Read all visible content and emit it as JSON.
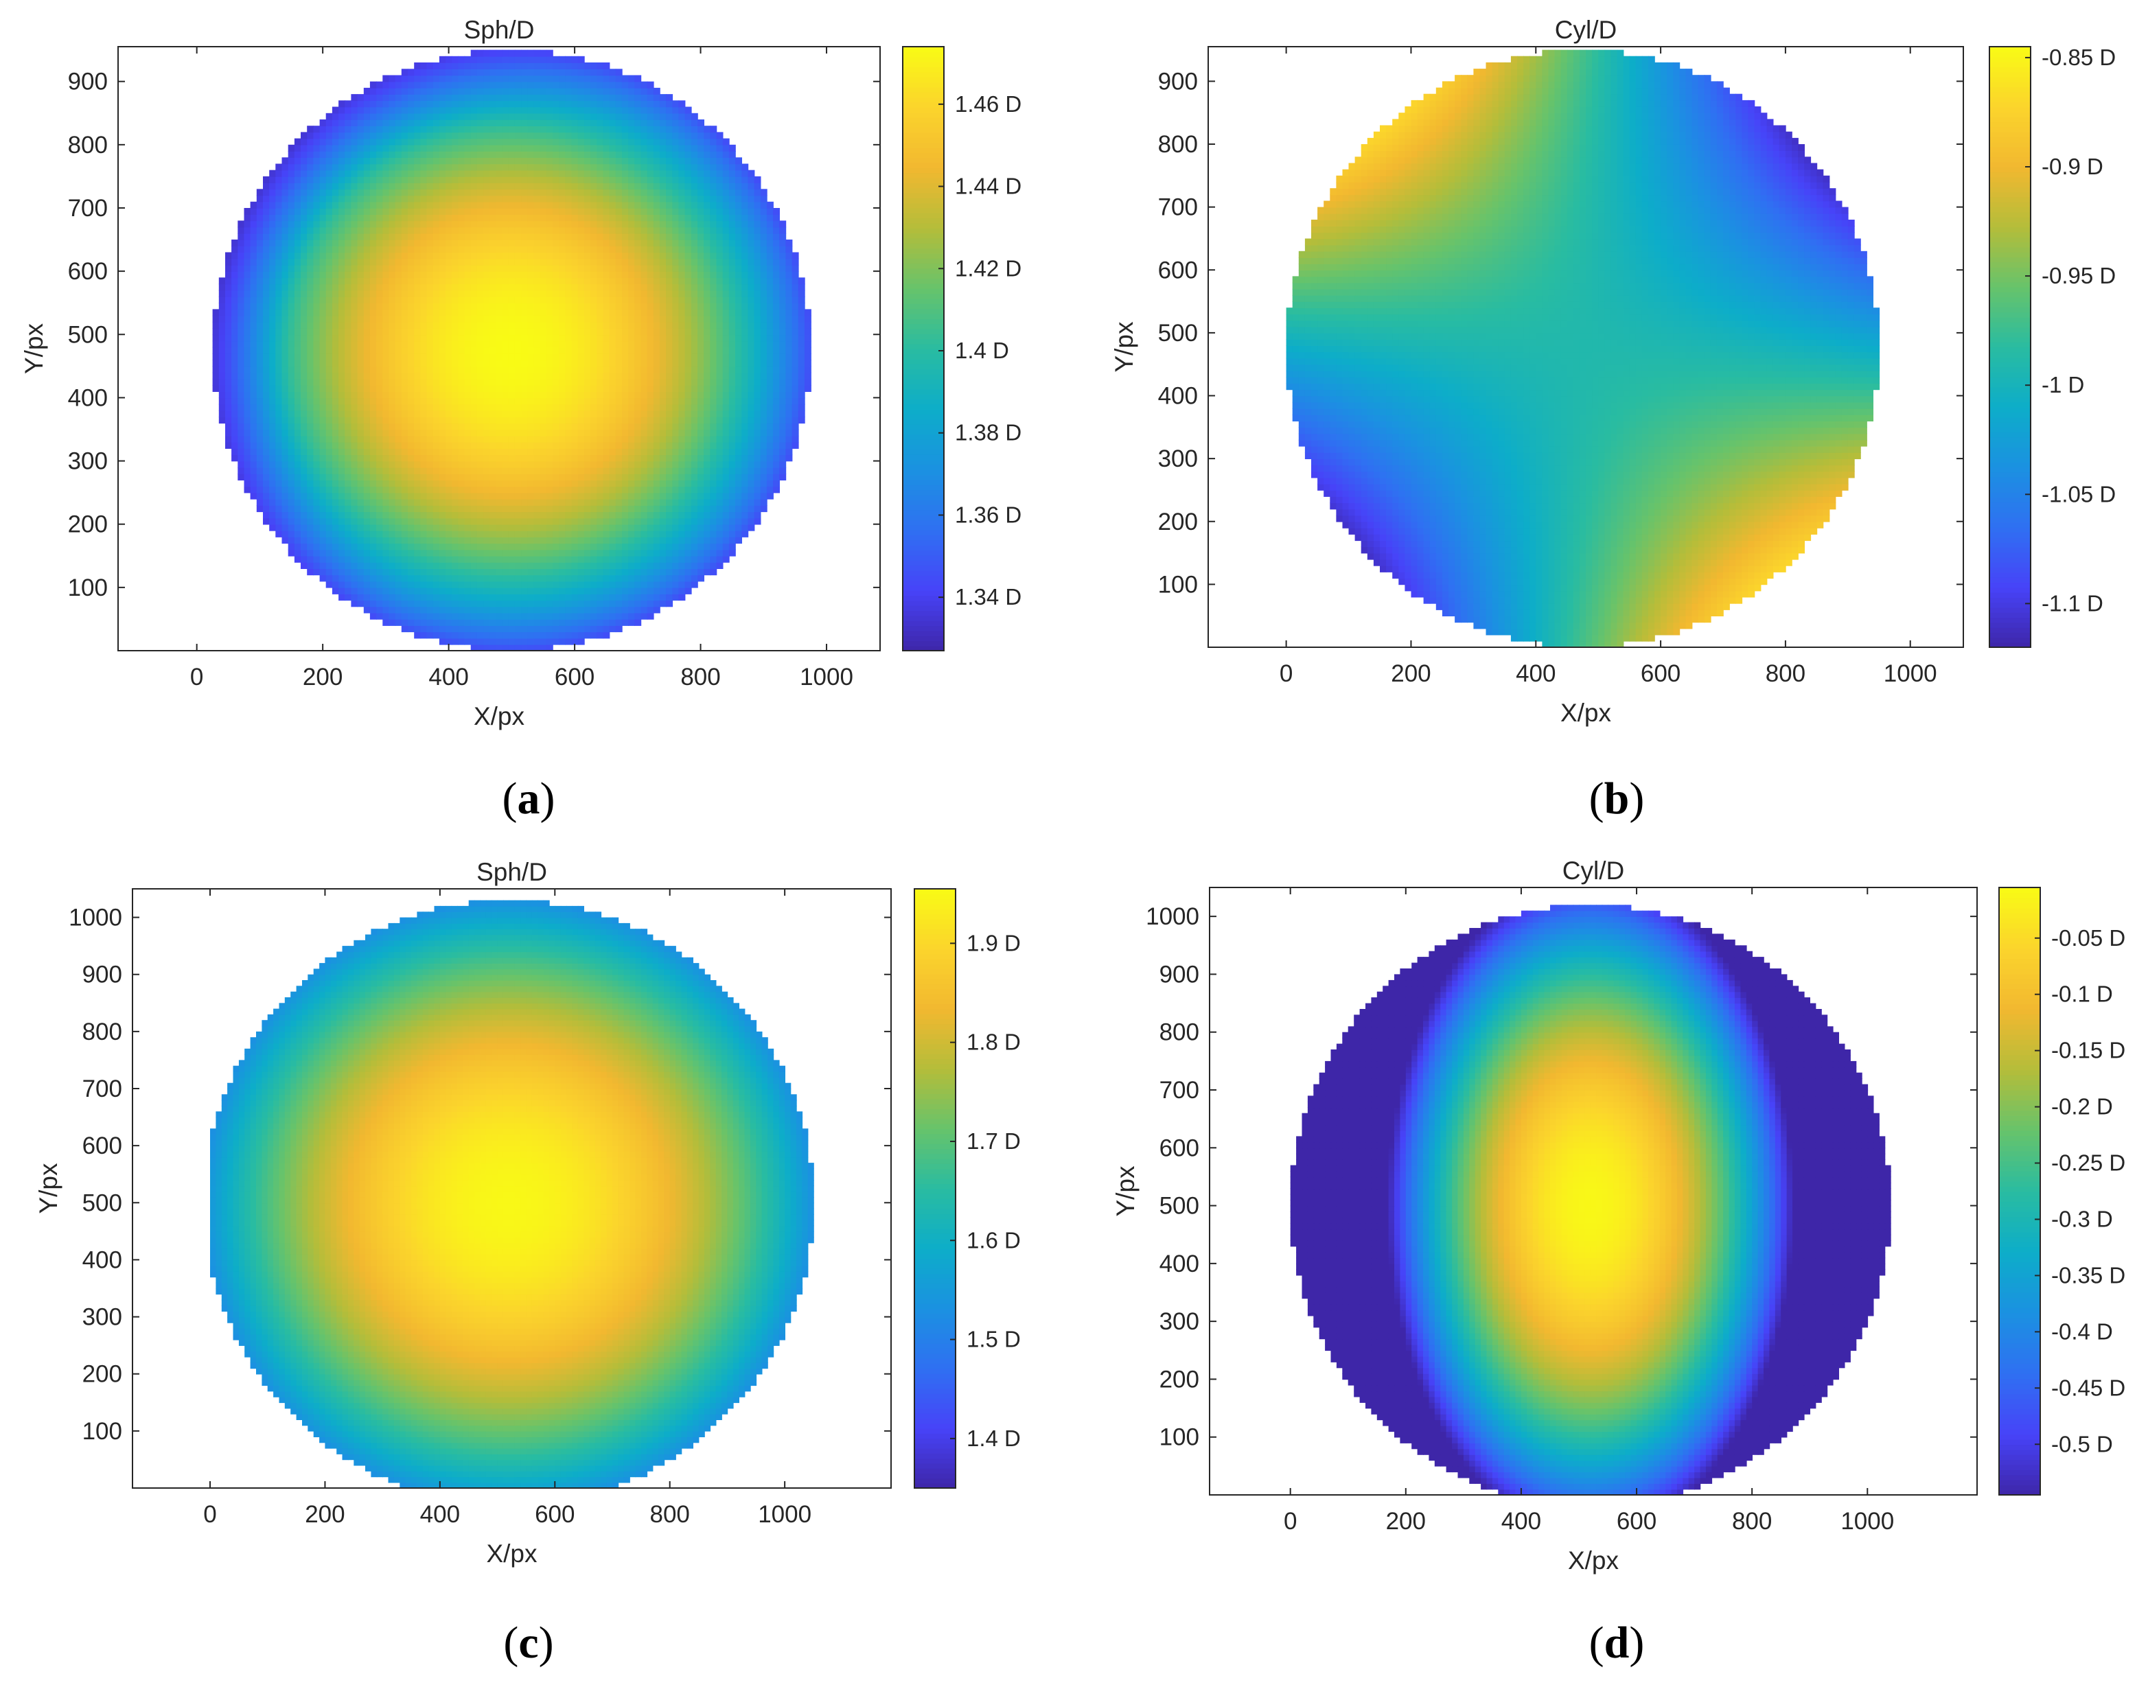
{
  "chart_data": [
    {
      "panel": "a",
      "type": "heatmap",
      "title": "Sph/D",
      "xlabel": "X/px",
      "ylabel": "Y/px",
      "xlim": [
        -125,
        1085
      ],
      "ylim": [
        0,
        955
      ],
      "xticks": [
        0,
        200,
        400,
        600,
        800,
        1000
      ],
      "xtick_labels": [
        "0",
        "200",
        "400",
        "600",
        "800",
        "1000"
      ],
      "yticks": [
        100,
        200,
        300,
        400,
        500,
        600,
        700,
        800,
        900
      ],
      "ytick_labels": [
        "100",
        "200",
        "300",
        "400",
        "500",
        "600",
        "700",
        "800",
        "900"
      ],
      "colorbar": {
        "range": [
          1.327,
          1.474
        ],
        "ticks": [
          1.34,
          1.36,
          1.38,
          1.4,
          1.42,
          1.44,
          1.46
        ],
        "labels": [
          "1.34 D",
          "1.36 D",
          "1.38 D",
          "1.4 D",
          "1.42 D",
          "1.44 D",
          "1.46 D"
        ]
      },
      "field": {
        "shape": "circle",
        "center": [
          500,
          475
        ],
        "radius": 475,
        "pattern": "radial",
        "value_center": 1.474,
        "value_edge": 1.345,
        "edge_offset": [
          -0.9,
          0.4
        ],
        "edge_min": 1.327
      },
      "panel_label": {
        "open": "(",
        "letter": "a",
        "close": ")"
      }
    },
    {
      "panel": "b",
      "type": "heatmap",
      "title": "Cyl/D",
      "xlabel": "X/px",
      "ylabel": "Y/px",
      "xlim": [
        -125,
        1085
      ],
      "ylim": [
        0,
        955
      ],
      "xticks": [
        0,
        200,
        400,
        600,
        800,
        1000
      ],
      "xtick_labels": [
        "0",
        "200",
        "400",
        "600",
        "800",
        "1000"
      ],
      "yticks": [
        100,
        200,
        300,
        400,
        500,
        600,
        700,
        800,
        900
      ],
      "ytick_labels": [
        "100",
        "200",
        "300",
        "400",
        "500",
        "600",
        "700",
        "800",
        "900"
      ],
      "colorbar": {
        "range": [
          -1.12,
          -0.845
        ],
        "ticks": [
          -1.1,
          -1.05,
          -1,
          -0.95,
          -0.9,
          -0.85
        ],
        "labels": [
          "-1.1 D",
          "-1.05 D",
          "-1 D",
          "-0.95 D",
          "-0.9 D",
          "-0.85 D"
        ]
      },
      "field": {
        "shape": "circle",
        "center": [
          475,
          475
        ],
        "radius": 475,
        "pattern": "saddle",
        "value_center": -0.99,
        "amplitude": 0.12,
        "axis_angle_deg": 40
      },
      "panel_label": {
        "open": "(",
        "letter": "b",
        "close": ")"
      }
    },
    {
      "panel": "c",
      "type": "heatmap",
      "title": "Sph/D",
      "xlabel": "X/px",
      "ylabel": "Y/px",
      "xlim": [
        -135,
        1185
      ],
      "ylim": [
        0,
        1050
      ],
      "xticks": [
        0,
        200,
        400,
        600,
        800,
        1000
      ],
      "xtick_labels": [
        "0",
        "200",
        "400",
        "600",
        "800",
        "1000"
      ],
      "yticks": [
        100,
        200,
        300,
        400,
        500,
        600,
        700,
        800,
        900,
        1000
      ],
      "ytick_labels": [
        "100",
        "200",
        "300",
        "400",
        "500",
        "600",
        "700",
        "800",
        "900",
        "1000"
      ],
      "colorbar": {
        "range": [
          1.35,
          1.955
        ],
        "ticks": [
          1.4,
          1.5,
          1.6,
          1.7,
          1.8,
          1.9
        ],
        "labels": [
          "1.4 D",
          "1.5 D",
          "1.6 D",
          "1.7 D",
          "1.8 D",
          "1.9 D"
        ]
      },
      "field": {
        "shape": "circle",
        "center": [
          520,
          500
        ],
        "radius": 530,
        "clip_x": [
          5,
          1045
        ],
        "pattern": "radial",
        "value_center": 1.95,
        "value_edge": 1.53
      },
      "panel_label": {
        "open": "(",
        "letter": "c",
        "close": ")"
      }
    },
    {
      "panel": "d",
      "type": "heatmap",
      "title": "Cyl/D",
      "xlabel": "X/px",
      "ylabel": "Y/px",
      "xlim": [
        -140,
        1190
      ],
      "ylim": [
        0,
        1050
      ],
      "xticks": [
        0,
        200,
        400,
        600,
        800,
        1000
      ],
      "xtick_labels": [
        "0",
        "200",
        "400",
        "600",
        "800",
        "1000"
      ],
      "yticks": [
        100,
        200,
        300,
        400,
        500,
        600,
        700,
        800,
        900,
        1000
      ],
      "ytick_labels": [
        "100",
        "200",
        "300",
        "400",
        "500",
        "600",
        "700",
        "800",
        "900",
        "1000"
      ],
      "colorbar": {
        "range": [
          -0.545,
          -0.005
        ],
        "ticks": [
          -0.5,
          -0.45,
          -0.4,
          -0.35,
          -0.3,
          -0.25,
          -0.2,
          -0.15,
          -0.1,
          -0.05
        ],
        "labels": [
          "-0.5 D",
          "-0.45 D",
          "-0.4 D",
          "-0.35 D",
          "-0.3 D",
          "-0.25 D",
          "-0.2 D",
          "-0.15 D",
          "-0.1 D",
          "-0.05 D"
        ]
      },
      "field": {
        "shape": "circle",
        "center": [
          520,
          500
        ],
        "radius": 520,
        "clip_x": [
          5,
          1045
        ],
        "pattern": "elliptic",
        "value_center": -0.01,
        "value_edge": -0.46,
        "x_scale": 0.62
      },
      "panel_label": {
        "open": "(",
        "letter": "d",
        "close": ")"
      }
    }
  ]
}
